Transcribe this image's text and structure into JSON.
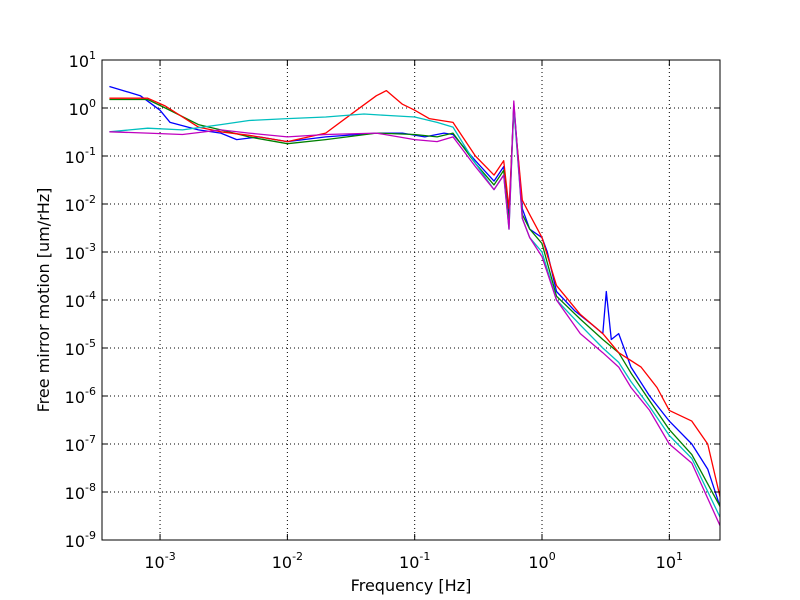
{
  "chart_data": {
    "type": "line",
    "title": "",
    "xlabel": "Frequency [Hz]",
    "ylabel": "Free mirror motion [um/rHz]",
    "xscale": "log",
    "yscale": "log",
    "xlim": [
      0.00035,
      25
    ],
    "ylim": [
      1e-09,
      10
    ],
    "grid": true,
    "legend": "none",
    "x_ticks": [
      {
        "value": 0.001,
        "label": "10",
        "exp": "-3"
      },
      {
        "value": 0.01,
        "label": "10",
        "exp": "-2"
      },
      {
        "value": 0.1,
        "label": "10",
        "exp": "-1"
      },
      {
        "value": 1,
        "label": "10",
        "exp": "0"
      },
      {
        "value": 10,
        "label": "10",
        "exp": "1"
      }
    ],
    "y_ticks": [
      {
        "value": 10,
        "label": "10",
        "exp": "1"
      },
      {
        "value": 1,
        "label": "10",
        "exp": "0"
      },
      {
        "value": 0.1,
        "label": "10",
        "exp": "-1"
      },
      {
        "value": 0.01,
        "label": "10",
        "exp": "-2"
      },
      {
        "value": 0.001,
        "label": "10",
        "exp": "-3"
      },
      {
        "value": 0.0001,
        "label": "10",
        "exp": "-4"
      },
      {
        "value": 1e-05,
        "label": "10",
        "exp": "-5"
      },
      {
        "value": 1e-06,
        "label": "10",
        "exp": "-6"
      },
      {
        "value": 1e-07,
        "label": "10",
        "exp": "-7"
      },
      {
        "value": 1e-08,
        "label": "10",
        "exp": "-8"
      },
      {
        "value": 1e-09,
        "label": "10",
        "exp": "-9"
      }
    ],
    "series": [
      {
        "color": "#0000ff",
        "points": [
          [
            0.0004,
            2.8
          ],
          [
            0.0007,
            1.8
          ],
          [
            0.001,
            0.9
          ],
          [
            0.0012,
            0.5
          ],
          [
            0.002,
            0.35
          ],
          [
            0.003,
            0.3
          ],
          [
            0.004,
            0.22
          ],
          [
            0.006,
            0.25
          ],
          [
            0.01,
            0.2
          ],
          [
            0.02,
            0.25
          ],
          [
            0.05,
            0.3
          ],
          [
            0.08,
            0.3
          ],
          [
            0.12,
            0.25
          ],
          [
            0.17,
            0.3
          ],
          [
            0.2,
            0.28
          ],
          [
            0.3,
            0.08
          ],
          [
            0.42,
            0.03
          ],
          [
            0.5,
            0.06
          ],
          [
            0.55,
            0.005
          ],
          [
            0.6,
            1.2
          ],
          [
            0.7,
            0.008
          ],
          [
            0.8,
            0.003
          ],
          [
            1.0,
            0.002
          ],
          [
            1.1,
            0.001
          ],
          [
            1.3,
            0.00015
          ],
          [
            1.8,
            6e-05
          ],
          [
            2.5,
            3e-05
          ],
          [
            3,
            2e-05
          ],
          [
            3.2,
            0.00015
          ],
          [
            3.5,
            1.5e-05
          ],
          [
            4,
            2e-05
          ],
          [
            5,
            4e-06
          ],
          [
            7,
            1e-06
          ],
          [
            10,
            3e-07
          ],
          [
            15,
            1e-07
          ],
          [
            20,
            3e-08
          ],
          [
            25,
            5e-09
          ]
        ]
      },
      {
        "color": "#008000",
        "points": [
          [
            0.0004,
            1.5
          ],
          [
            0.0008,
            1.5
          ],
          [
            0.0011,
            1.0
          ],
          [
            0.002,
            0.45
          ],
          [
            0.003,
            0.35
          ],
          [
            0.005,
            0.25
          ],
          [
            0.01,
            0.18
          ],
          [
            0.02,
            0.22
          ],
          [
            0.05,
            0.3
          ],
          [
            0.1,
            0.28
          ],
          [
            0.15,
            0.25
          ],
          [
            0.2,
            0.3
          ],
          [
            0.3,
            0.07
          ],
          [
            0.42,
            0.025
          ],
          [
            0.5,
            0.05
          ],
          [
            0.55,
            0.004
          ],
          [
            0.6,
            1.1
          ],
          [
            0.7,
            0.006
          ],
          [
            0.8,
            0.003
          ],
          [
            1.0,
            0.0015
          ],
          [
            1.3,
            0.00012
          ],
          [
            2,
            4e-05
          ],
          [
            3,
            1.5e-05
          ],
          [
            4,
            8e-06
          ],
          [
            5,
            3e-06
          ],
          [
            7,
            8e-07
          ],
          [
            10,
            2e-07
          ],
          [
            15,
            6e-08
          ],
          [
            25,
            5e-09
          ]
        ]
      },
      {
        "color": "#ff0000",
        "points": [
          [
            0.0004,
            1.6
          ],
          [
            0.0008,
            1.6
          ],
          [
            0.0011,
            1.1
          ],
          [
            0.002,
            0.4
          ],
          [
            0.003,
            0.32
          ],
          [
            0.005,
            0.27
          ],
          [
            0.01,
            0.2
          ],
          [
            0.02,
            0.3
          ],
          [
            0.035,
            0.9
          ],
          [
            0.05,
            1.8
          ],
          [
            0.06,
            2.3
          ],
          [
            0.08,
            1.2
          ],
          [
            0.1,
            0.9
          ],
          [
            0.13,
            0.6
          ],
          [
            0.2,
            0.5
          ],
          [
            0.3,
            0.1
          ],
          [
            0.42,
            0.04
          ],
          [
            0.5,
            0.08
          ],
          [
            0.55,
            0.008
          ],
          [
            0.6,
            0.9
          ],
          [
            0.7,
            0.012
          ],
          [
            0.8,
            0.006
          ],
          [
            1.0,
            0.002
          ],
          [
            1.3,
            0.0002
          ],
          [
            2,
            5e-05
          ],
          [
            3,
            2e-05
          ],
          [
            4,
            8e-06
          ],
          [
            6,
            4e-06
          ],
          [
            8,
            1.5e-06
          ],
          [
            10,
            5e-07
          ],
          [
            15,
            3e-07
          ],
          [
            20,
            1e-07
          ],
          [
            25,
            8e-09
          ]
        ]
      },
      {
        "color": "#00bfbf",
        "points": [
          [
            0.0004,
            0.32
          ],
          [
            0.0008,
            0.38
          ],
          [
            0.0015,
            0.35
          ],
          [
            0.003,
            0.45
          ],
          [
            0.005,
            0.55
          ],
          [
            0.01,
            0.6
          ],
          [
            0.02,
            0.65
          ],
          [
            0.04,
            0.75
          ],
          [
            0.06,
            0.7
          ],
          [
            0.1,
            0.65
          ],
          [
            0.15,
            0.5
          ],
          [
            0.2,
            0.4
          ],
          [
            0.3,
            0.07
          ],
          [
            0.42,
            0.02
          ],
          [
            0.5,
            0.04
          ],
          [
            0.55,
            0.003
          ],
          [
            0.6,
            1.0
          ],
          [
            0.7,
            0.005
          ],
          [
            0.8,
            0.002
          ],
          [
            1.0,
            0.001
          ],
          [
            1.3,
            0.0001
          ],
          [
            2,
            3e-05
          ],
          [
            3,
            1e-05
          ],
          [
            4,
            5e-06
          ],
          [
            5,
            2e-06
          ],
          [
            7,
            6e-07
          ],
          [
            10,
            1.5e-07
          ],
          [
            15,
            5e-08
          ],
          [
            25,
            3e-09
          ]
        ]
      },
      {
        "color": "#bf00bf",
        "points": [
          [
            0.0004,
            0.32
          ],
          [
            0.0008,
            0.3
          ],
          [
            0.0015,
            0.28
          ],
          [
            0.003,
            0.35
          ],
          [
            0.005,
            0.3
          ],
          [
            0.01,
            0.25
          ],
          [
            0.02,
            0.28
          ],
          [
            0.05,
            0.3
          ],
          [
            0.1,
            0.22
          ],
          [
            0.15,
            0.2
          ],
          [
            0.2,
            0.25
          ],
          [
            0.3,
            0.06
          ],
          [
            0.42,
            0.02
          ],
          [
            0.5,
            0.04
          ],
          [
            0.55,
            0.003
          ],
          [
            0.6,
            1.4
          ],
          [
            0.7,
            0.005
          ],
          [
            0.8,
            0.002
          ],
          [
            1.0,
            0.0008
          ],
          [
            1.3,
            0.0001
          ],
          [
            2,
            2e-05
          ],
          [
            3,
            8e-06
          ],
          [
            4,
            4e-06
          ],
          [
            5,
            1.5e-06
          ],
          [
            7,
            5e-07
          ],
          [
            10,
            1e-07
          ],
          [
            15,
            4e-08
          ],
          [
            25,
            2e-09
          ]
        ]
      }
    ]
  }
}
